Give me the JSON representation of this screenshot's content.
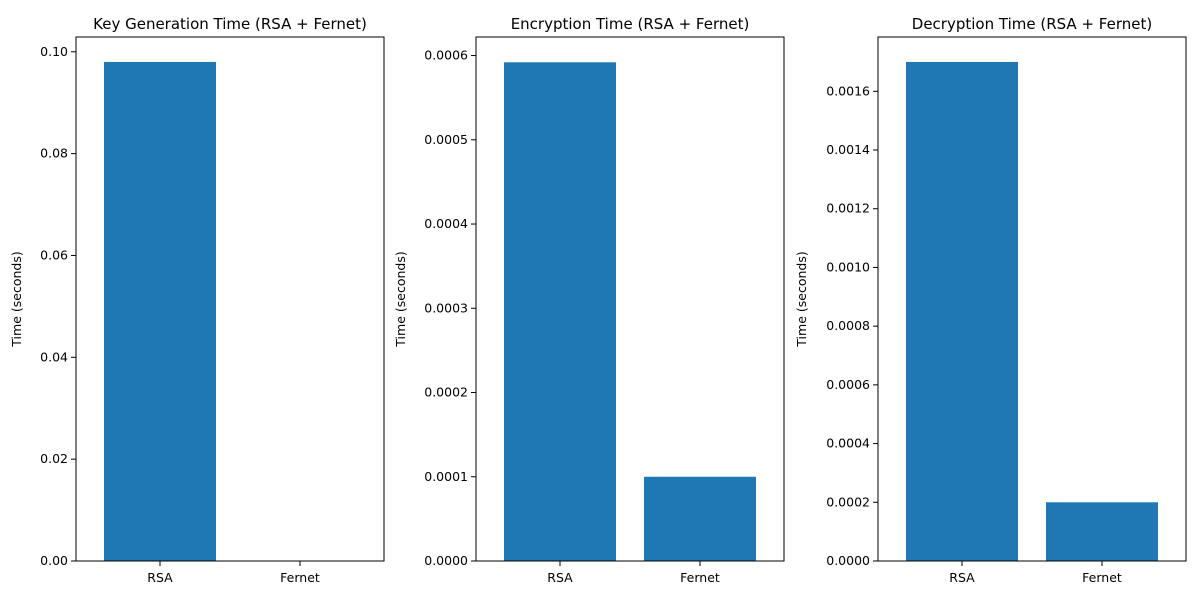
{
  "chart_data": [
    {
      "type": "bar",
      "title": "Key Generation Time (RSA + Fernet)",
      "xlabel": "",
      "ylabel": "Time (seconds)",
      "categories": [
        "RSA",
        "Fernet"
      ],
      "values": [
        0.098,
        1e-05
      ],
      "ylim": [
        0,
        0.1029
      ],
      "yticks": [
        0.0,
        0.02,
        0.04,
        0.06,
        0.08,
        0.1
      ],
      "ytick_labels": [
        "0.00",
        "0.02",
        "0.04",
        "0.06",
        "0.08",
        "0.10"
      ],
      "grid": false,
      "bar_color": "#1f77b4"
    },
    {
      "type": "bar",
      "title": "Encryption Time (RSA + Fernet)",
      "xlabel": "",
      "ylabel": "Time (seconds)",
      "categories": [
        "RSA",
        "Fernet"
      ],
      "values": [
        0.000592,
        0.0001
      ],
      "ylim": [
        0,
        0.000622
      ],
      "yticks": [
        0.0,
        0.0001,
        0.0002,
        0.0003,
        0.0004,
        0.0005,
        0.0006
      ],
      "ytick_labels": [
        "0.0000",
        "0.0001",
        "0.0002",
        "0.0003",
        "0.0004",
        "0.0005",
        "0.0006"
      ],
      "grid": false,
      "bar_color": "#1f77b4"
    },
    {
      "type": "bar",
      "title": "Decryption Time (RSA + Fernet)",
      "xlabel": "",
      "ylabel": "Time (seconds)",
      "categories": [
        "RSA",
        "Fernet"
      ],
      "values": [
        0.0017,
        0.0002
      ],
      "ylim": [
        0,
        0.001785
      ],
      "yticks": [
        0.0,
        0.0002,
        0.0004,
        0.0006,
        0.0008,
        0.001,
        0.0012,
        0.0014,
        0.0016
      ],
      "ytick_labels": [
        "0.0000",
        "0.0002",
        "0.0004",
        "0.0006",
        "0.0008",
        "0.0010",
        "0.0012",
        "0.0014",
        "0.0016"
      ],
      "grid": false,
      "bar_color": "#1f77b4"
    }
  ]
}
